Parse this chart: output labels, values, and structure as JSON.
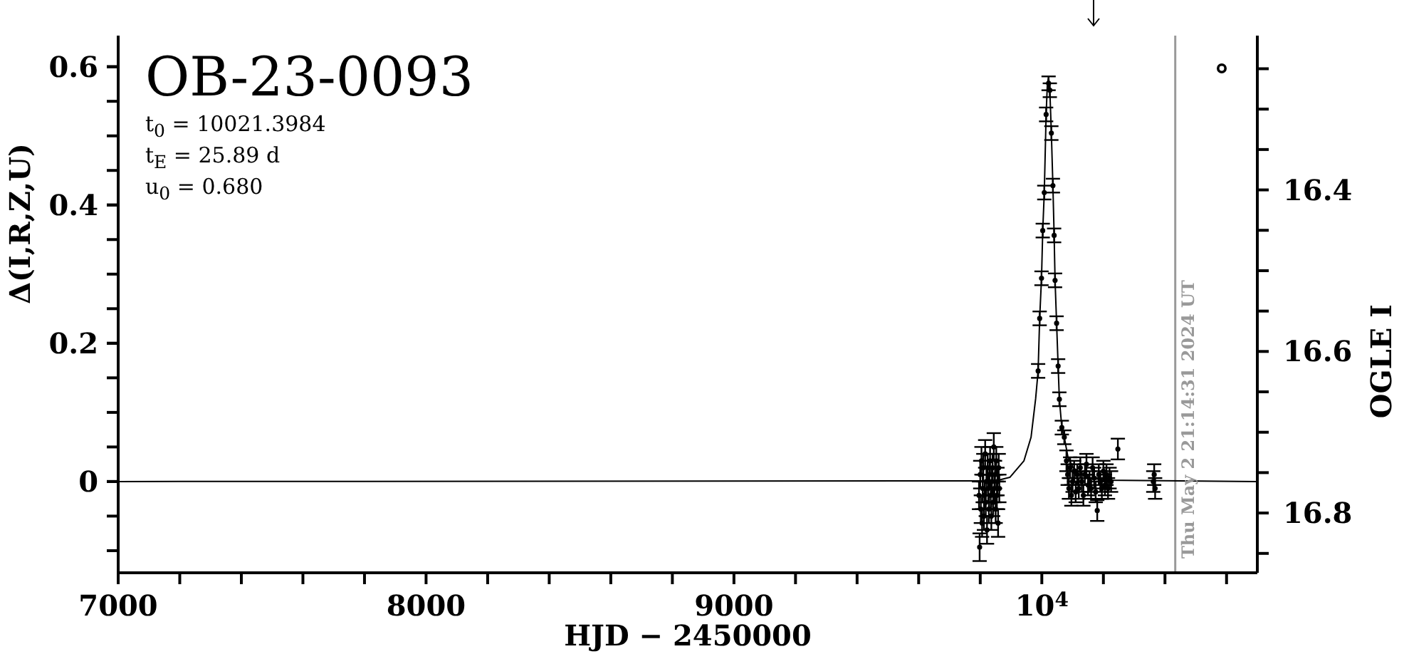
{
  "chart_data": {
    "type": "scatter",
    "title": "OB-23-0093",
    "xlabel": "HJD − 2450000",
    "ylabel": "Δ(I,R,Z,U)",
    "y2label": "OGLE I",
    "annotations": [
      "t$_{0}$ = 10021.3984",
      "t$_{E}$ = 25.89 d",
      "u$_{0}$ = 0.680",
      "Thu May  2 21:14:31 2024 UT"
    ],
    "xlim": [
      7000,
      10700
    ],
    "xticks": [
      7000,
      {
        "value": 7200,
        "label": null
      },
      {
        "value": 7400,
        "label": null
      },
      {
        "value": 7600,
        "label": null
      },
      {
        "value": 7800,
        "label": null
      },
      8000,
      {
        "value": 8200,
        "label": null
      },
      {
        "value": 8400,
        "label": null
      },
      {
        "value": 8600,
        "label": null
      },
      {
        "value": 8800,
        "label": null
      },
      9000,
      {
        "value": 9200,
        "label": null
      },
      {
        "value": 9400,
        "label": null
      },
      {
        "value": 9600,
        "label": null
      },
      {
        "value": 9800,
        "label": null
      },
      {
        "value": 10000,
        "label": "10$^{4}$"
      },
      {
        "value": 10200,
        "label": null
      },
      {
        "value": 10400,
        "label": null
      },
      {
        "value": 10600,
        "label": null
      }
    ],
    "ylim": [
      -0.132,
      0.645
    ],
    "yticks": [
      {
        "value": -0.1,
        "label": null
      },
      {
        "value": -0.05,
        "label": null
      },
      0,
      {
        "value": 0.05,
        "label": null
      },
      {
        "value": 0.1,
        "label": null
      },
      {
        "value": 0.15,
        "label": null
      },
      0.2,
      {
        "value": 0.25,
        "label": null
      },
      {
        "value": 0.3,
        "label": null
      },
      {
        "value": 0.35,
        "label": null
      },
      0.4,
      {
        "value": 0.45,
        "label": null
      },
      {
        "value": 0.5,
        "label": null
      },
      {
        "value": 0.55,
        "label": null
      },
      0.6
    ],
    "y2lim": [
      16.874,
      16.209
    ],
    "y2ticks": [
      {
        "value": 16.25,
        "label": null
      },
      {
        "value": 16.3,
        "label": null
      },
      {
        "value": 16.35,
        "label": null
      },
      16.4,
      {
        "value": 16.45,
        "label": null
      },
      {
        "value": 16.5,
        "label": null
      },
      {
        "value": 16.55,
        "label": null
      },
      16.6,
      {
        "value": 16.65,
        "label": null
      },
      {
        "value": 16.7,
        "label": null
      },
      {
        "value": 16.75,
        "label": null
      },
      16.8,
      {
        "value": 16.85,
        "label": null
      }
    ],
    "ref_lines": [
      {
        "axis": "x",
        "value": 10433.385,
        "color": "#999999"
      }
    ],
    "series": [
      {
        "type": "line",
        "color": "#000000",
        "marker": "none",
        "line_style": "solid",
        "x": [
          7000,
          9850,
          9896,
          9942,
          9965,
          9980,
          9988,
          9993,
          9999,
          10003,
          10008,
          10014,
          10018,
          10022,
          10026,
          10031,
          10036,
          10040,
          10043,
          10048,
          10053,
          10057,
          10065,
          10073,
          10085,
          10102,
          10148,
          10200,
          10700
        ],
        "values": [
          0,
          0.001,
          0.006,
          0.03,
          0.064,
          0.12,
          0.16,
          0.236,
          0.294,
          0.363,
          0.418,
          0.531,
          0.575,
          0.585,
          0.566,
          0.504,
          0.428,
          0.356,
          0.291,
          0.229,
          0.167,
          0.119,
          0.078,
          0.064,
          0.035,
          0.02,
          0.006,
          0.002,
          0
        ]
      },
      {
        "color": "#000000",
        "marker": "circle",
        "x": [
          9796,
          9798,
          9800,
          9802,
          9804,
          9806,
          9808,
          9810,
          9812,
          9814,
          9816,
          9818,
          9820,
          9822,
          9824,
          9826,
          9828,
          9830,
          9832,
          9834,
          9836,
          9838,
          9840,
          9842,
          9844,
          9846,
          9848,
          9850,
          9852,
          9854,
          9856,
          9858,
          9860,
          9862,
          9988,
          9993,
          9999,
          10003,
          10008,
          10014,
          10022,
          10026,
          10031,
          10036,
          10040,
          10043,
          10048,
          10053,
          10057,
          10065,
          10073,
          10080,
          10084,
          10088,
          10092,
          10096,
          10100,
          10105,
          10110,
          10115,
          10120,
          10125,
          10130,
          10135,
          10140,
          10145,
          10150,
          10155,
          10160,
          10165,
          10170,
          10175,
          10180,
          10185,
          10190,
          10195,
          10200,
          10205,
          10210,
          10215,
          10220,
          10225,
          10247,
          10362,
          10365,
          10368
        ],
        "values": [
          -0.02,
          -0.095,
          0.01,
          -0.04,
          0.03,
          -0.06,
          -0.01,
          0.02,
          -0.05,
          -0.02,
          0.04,
          -0.03,
          0,
          -0.07,
          0.02,
          -0.01,
          -0.04,
          0.01,
          0.03,
          -0.02,
          -0.05,
          0,
          0.02,
          -0.03,
          0.05,
          -0.01,
          0.01,
          -0.04,
          0.03,
          -0.02,
          0,
          -0.06,
          0.02,
          -0.01,
          0.16,
          0.236,
          0.294,
          0.363,
          0.418,
          0.531,
          0.576,
          0.566,
          0.504,
          0.428,
          0.356,
          0.291,
          0.229,
          0.167,
          0.119,
          0.078,
          0.064,
          0.03,
          0.01,
          -0.01,
          0.02,
          -0.02,
          0,
          0.015,
          -0.015,
          0.01,
          -0.01,
          0.02,
          0,
          -0.02,
          0.01,
          0.025,
          -0.005,
          0,
          -0.01,
          0.02,
          0.005,
          -0.015,
          -0.042,
          0.01,
          0,
          -0.01,
          0.015,
          -0.005,
          0.01,
          -0.01,
          0.005,
          0,
          0.047,
          0,
          0.01,
          -0.01
        ],
        "errors": [
          0.02,
          0.02,
          0.02,
          0.02,
          0.02,
          0.02,
          0.02,
          0.02,
          0.02,
          0.02,
          0.02,
          0.02,
          0.02,
          0.02,
          0.02,
          0.02,
          0.02,
          0.02,
          0.02,
          0.02,
          0.02,
          0.02,
          0.02,
          0.02,
          0.02,
          0.02,
          0.02,
          0.02,
          0.02,
          0.02,
          0.02,
          0.02,
          0.02,
          0.02,
          0.01,
          0.01,
          0.01,
          0.01,
          0.01,
          0.01,
          0.01,
          0.01,
          0.01,
          0.01,
          0.01,
          0.01,
          0.01,
          0.01,
          0.01,
          0.01,
          0.01,
          0.015,
          0.015,
          0.015,
          0.015,
          0.015,
          0.015,
          0.015,
          0.015,
          0.015,
          0.015,
          0.015,
          0.015,
          0.015,
          0.015,
          0.015,
          0.015,
          0.015,
          0.015,
          0.015,
          0.015,
          0.015,
          0.015,
          0.015,
          0.015,
          0.015,
          0.015,
          0.015,
          0.015,
          0.015,
          0.015,
          0.015,
          0.015,
          0.015,
          0.015,
          0.015
        ]
      }
    ]
  }
}
